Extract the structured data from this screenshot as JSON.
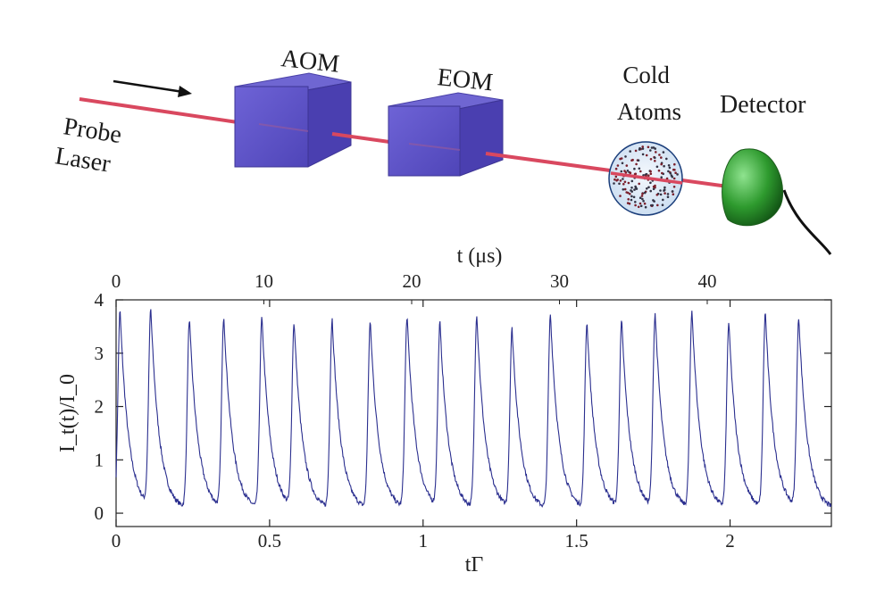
{
  "diagram": {
    "probe_laser_label": [
      "Probe",
      "Laser"
    ],
    "aom_label": "AOM",
    "eom_label": "EOM",
    "cold_atoms_label": [
      "Cold",
      "Atoms"
    ],
    "detector_label": "Detector",
    "colors": {
      "laser_beam": "#d9485f",
      "modulator_box": "#5a4fc4",
      "detector": "#2e9a2e",
      "atom_cloud": "#c9dcf0"
    }
  },
  "chart_data": {
    "type": "line",
    "xlabel": "tΓ",
    "ylabel": "I_t(t)/I_0",
    "x2label": "t (μs)",
    "xlim": [
      0,
      2.33
    ],
    "ylim": [
      -0.25,
      4
    ],
    "x2lim": [
      0,
      48.4
    ],
    "xticks": [
      "0",
      "0.5",
      "1",
      "1.5",
      "2"
    ],
    "xtick_values": [
      0,
      0.5,
      1,
      1.5,
      2
    ],
    "x2ticks": [
      "0",
      "10",
      "20",
      "30",
      "40"
    ],
    "x2tick_values": [
      0,
      10,
      20,
      30,
      40
    ],
    "yticks": [
      "0",
      "1",
      "2",
      "3",
      "4"
    ],
    "ytick_values": [
      0,
      1,
      2,
      3,
      4
    ],
    "grid": false,
    "line_color": "#2b2f8f",
    "series": [
      {
        "peak_x": [
          0.013,
          0.113,
          0.239,
          0.351,
          0.475,
          0.58,
          0.704,
          0.828,
          0.948,
          1.055,
          1.175,
          1.29,
          1.415,
          1.534,
          1.647,
          1.756,
          1.876,
          1.996,
          2.115,
          2.224
        ],
        "peak_y": [
          3.8,
          3.73,
          3.6,
          3.63,
          3.63,
          3.5,
          3.6,
          3.55,
          3.65,
          3.5,
          3.68,
          3.4,
          3.7,
          3.53,
          3.55,
          3.68,
          3.75,
          3.53,
          3.72,
          3.6
        ],
        "baseline": 0.05
      }
    ]
  }
}
